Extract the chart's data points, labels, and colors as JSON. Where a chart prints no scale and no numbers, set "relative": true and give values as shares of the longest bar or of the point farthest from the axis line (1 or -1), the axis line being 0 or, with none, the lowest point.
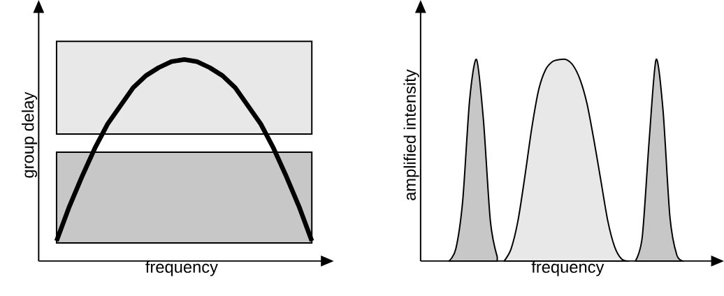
{
  "chart_data": [
    {
      "type": "line",
      "xlabel": "frequency",
      "ylabel": "group delay",
      "relative": true,
      "tick_labels": false,
      "categories": [
        null,
        null,
        null,
        null,
        null,
        null,
        null,
        null,
        null,
        null,
        null,
        null,
        null,
        null,
        null,
        null,
        null,
        null,
        null,
        null,
        null
      ],
      "series": [
        {
          "color": "#000000",
          "values": [
            0.1,
            0.27,
            0.42,
            0.56,
            0.68,
            0.77,
            0.86,
            0.92,
            0.96,
            0.99,
            1,
            0.99,
            0.96,
            0.92,
            0.86,
            0.77,
            0.68,
            0.56,
            0.42,
            0.27,
            0.1
          ]
        }
      ],
      "bands": [
        {
          "axis": "y",
          "from": 0.09,
          "to": 0.54
        },
        {
          "axis": "y",
          "from": 0.63,
          "to": 1.09
        }
      ]
    },
    {
      "type": "area",
      "xlabel": "frequency",
      "ylabel": "amplified intensity",
      "relative": true,
      "tick_labels": false,
      "categories": [
        null,
        null,
        null,
        null,
        null,
        null,
        null,
        null,
        null,
        null,
        null,
        null,
        null,
        null,
        null,
        null,
        null,
        null,
        null,
        null,
        null,
        null,
        null,
        null,
        null,
        null,
        null,
        null,
        null,
        null,
        null,
        null,
        null,
        null,
        null,
        null,
        null,
        null,
        null,
        null,
        null
      ],
      "series": [
        {
          "color": "#000000",
          "values": [
            null,
            null,
            null,
            0,
            0.06,
            0.3,
            0.8,
            1,
            0.7,
            0.2,
            0.02,
            null,
            null,
            null,
            null,
            null,
            null,
            null,
            null,
            null,
            null,
            null,
            null,
            null,
            null,
            null,
            null,
            null,
            null,
            null,
            null,
            null,
            null,
            null,
            null,
            null,
            null,
            null,
            null,
            null,
            null
          ]
        },
        {
          "color": "#000000",
          "values": [
            null,
            null,
            null,
            null,
            null,
            null,
            null,
            null,
            null,
            null,
            null,
            0,
            0.06,
            0.2,
            0.42,
            0.66,
            0.85,
            0.95,
            0.99,
            1,
            1,
            0.97,
            0.9,
            0.78,
            0.6,
            0.4,
            0.2,
            0.07,
            0.01,
            0,
            null,
            null,
            null,
            null,
            null,
            null,
            null,
            null,
            null,
            null,
            null
          ]
        },
        {
          "color": "#000000",
          "values": [
            null,
            null,
            null,
            null,
            null,
            null,
            null,
            null,
            null,
            null,
            null,
            null,
            null,
            null,
            null,
            null,
            null,
            null,
            null,
            null,
            null,
            null,
            null,
            null,
            null,
            null,
            null,
            null,
            null,
            null,
            0,
            0.12,
            0.6,
            1,
            0.75,
            0.22,
            0.03,
            0,
            null,
            null,
            null
          ]
        }
      ]
    }
  ]
}
